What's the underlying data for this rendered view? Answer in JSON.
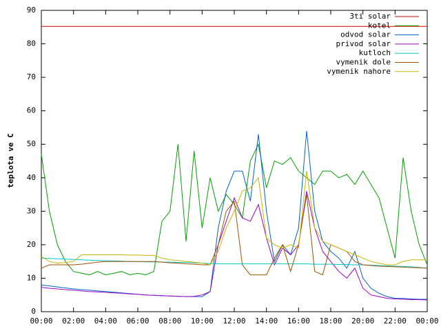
{
  "chart_data": {
    "type": "line",
    "ylabel": "teplota ve C",
    "x": [
      0,
      0.5,
      1,
      1.5,
      2,
      2.5,
      3,
      3.5,
      4,
      4.5,
      5,
      5.5,
      6,
      6.5,
      7,
      7.5,
      8,
      8.5,
      9,
      9.5,
      10,
      10.5,
      11,
      11.5,
      12,
      12.5,
      13,
      13.5,
      14,
      14.5,
      15,
      15.5,
      16,
      16.5,
      17,
      17.5,
      18,
      18.5,
      19,
      19.5,
      20,
      20.5,
      21,
      21.5,
      22,
      22.5,
      23,
      23.5,
      24
    ],
    "xlim": [
      0,
      24
    ],
    "xticks": [
      {
        "value": 0,
        "label": "00:00"
      },
      {
        "value": 2,
        "label": "02:00"
      },
      {
        "value": 4,
        "label": "04:00"
      },
      {
        "value": 6,
        "label": "06:00"
      },
      {
        "value": 8,
        "label": "08:00"
      },
      {
        "value": 10,
        "label": "10:00"
      },
      {
        "value": 12,
        "label": "12:00"
      },
      {
        "value": 14,
        "label": "14:00"
      },
      {
        "value": 16,
        "label": "16:00"
      },
      {
        "value": 18,
        "label": "18:00"
      },
      {
        "value": 20,
        "label": "20:00"
      },
      {
        "value": 22,
        "label": "22:00"
      },
      {
        "value": 24,
        "label": "00:00"
      }
    ],
    "ylim": [
      0,
      90
    ],
    "yticks": [
      0,
      10,
      20,
      30,
      40,
      50,
      60,
      70,
      80,
      90
    ],
    "legend": "top-right",
    "series": [
      {
        "name": "3ti solar",
        "color": "#d00000",
        "values": [
          85.2,
          85.2,
          85.2,
          85.2,
          85.2,
          85.2,
          85.2,
          85.2,
          85.2,
          85.2,
          85.2,
          85.2,
          85.2,
          85.2,
          85.2,
          85.2,
          85.2,
          85.2,
          85.2,
          85.2,
          85.2,
          85.2,
          85.2,
          85.2,
          85.2,
          85.2,
          85.2,
          85.2,
          85.2,
          85.2,
          85.2,
          85.2,
          85.2,
          85.2,
          85.2,
          85.2,
          85.2,
          85.2,
          85.2,
          85.2,
          85.2,
          85.2,
          85.2,
          85.2,
          85.2,
          85.2,
          85.2,
          85.2,
          85.2
        ]
      },
      {
        "name": "kotel",
        "color": "#00a000",
        "values": [
          47,
          30,
          20,
          15,
          12,
          11.5,
          11,
          12,
          11,
          11.5,
          12,
          11,
          11.5,
          11,
          12,
          27,
          30,
          50,
          21,
          48,
          25,
          40,
          30,
          35,
          32,
          28,
          45,
          50,
          37,
          45,
          44,
          46,
          42,
          40,
          38,
          42,
          42,
          40,
          41,
          38,
          42,
          38,
          34,
          25,
          16,
          46,
          30,
          20,
          14
        ]
      },
      {
        "name": "odvod solar",
        "color": "#0060d0",
        "values": [
          8,
          7.7,
          7.4,
          7.1,
          6.8,
          6.6,
          6.4,
          6.2,
          6,
          5.8,
          5.6,
          5.4,
          5.2,
          5,
          4.9,
          4.8,
          4.7,
          4.6,
          4.5,
          4.5,
          4.5,
          6,
          25,
          36,
          42,
          42,
          33,
          53,
          30,
          15,
          20,
          17,
          25,
          54,
          30,
          21,
          18,
          16,
          13,
          18,
          10,
          7,
          5.5,
          4.5,
          4,
          4,
          3.8,
          3.7,
          3.7
        ]
      },
      {
        "name": "privod solar",
        "color": "#a000c0",
        "values": [
          7.3,
          7,
          6.8,
          6.6,
          6.4,
          6.2,
          6,
          5.9,
          5.8,
          5.6,
          5.5,
          5.3,
          5.2,
          5,
          4.9,
          4.8,
          4.7,
          4.6,
          4.5,
          4.6,
          5,
          6,
          20,
          27,
          34,
          28,
          27,
          32,
          22,
          14,
          19,
          17,
          20,
          36,
          25,
          18,
          15,
          12,
          10,
          13,
          7,
          5,
          4.5,
          4,
          3.8,
          3.7,
          3.6,
          3.6,
          3.5
        ]
      },
      {
        "name": "kutloch",
        "color": "#00c8c8",
        "values": [
          16,
          15.9,
          15.8,
          15.7,
          15.6,
          15.5,
          15.4,
          15.3,
          15.2,
          15.2,
          15.1,
          15,
          15,
          14.9,
          14.9,
          14.8,
          14.8,
          14.7,
          14.7,
          14.6,
          14.5,
          14.4,
          14.3,
          14.3,
          14.3,
          14.3,
          14.3,
          14.3,
          14.3,
          14.3,
          14.3,
          14.3,
          14.3,
          14.3,
          14.2,
          14.2,
          14.2,
          14.1,
          14.1,
          14,
          14,
          13.9,
          13.8,
          13.7,
          13.6,
          13.5,
          13.4,
          13.2,
          13
        ]
      },
      {
        "name": "vymenik dole",
        "color": "#a05000",
        "values": [
          13,
          14,
          14,
          14,
          14,
          14.2,
          14.5,
          14.8,
          15,
          15,
          15,
          15,
          15,
          15,
          15,
          14.8,
          14.6,
          14.5,
          14.3,
          14.2,
          14,
          14,
          20,
          30,
          33,
          14,
          11,
          11,
          11,
          16,
          20,
          12,
          20,
          35,
          12,
          11,
          20,
          19,
          18,
          15,
          14,
          13.8,
          13.6,
          13.5,
          13.4,
          13.3,
          13.2,
          13.1,
          13
        ]
      },
      {
        "name": "vymenik nahore",
        "color": "#c8b400",
        "values": [
          16.5,
          15,
          14.5,
          14.7,
          15,
          17,
          17,
          17,
          17,
          17,
          17,
          16.9,
          16.9,
          16.8,
          16.8,
          16,
          15.5,
          15.3,
          15,
          14.8,
          14.5,
          14,
          18,
          25,
          30,
          36,
          37,
          40,
          22,
          20,
          19,
          20,
          19,
          42,
          25,
          21,
          20,
          19,
          18,
          17,
          16,
          15,
          14.5,
          14,
          14,
          15,
          15.5,
          15.5,
          15.5
        ]
      }
    ]
  }
}
